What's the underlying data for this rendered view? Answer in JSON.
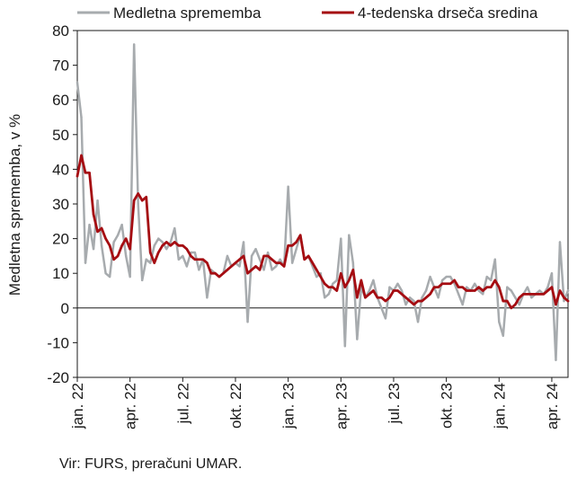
{
  "chart_data": {
    "type": "line",
    "ylabel": "Medletna sprememba, v %",
    "xlabel": "",
    "ylim": [
      -20,
      80
    ],
    "yticks": [
      -20,
      -10,
      0,
      10,
      20,
      30,
      40,
      50,
      60,
      70,
      80
    ],
    "x_tick_labels": [
      "jan. 22",
      "apr. 22",
      "jul. 22",
      "okt. 22",
      "jan. 23",
      "apr. 23",
      "jul. 23",
      "okt. 23",
      "jan. 24",
      "apr. 24"
    ],
    "x_tick_weeks": [
      0,
      13,
      26,
      39,
      52,
      65,
      78,
      91,
      104,
      117
    ],
    "legend_position": "top",
    "grid": false,
    "zero_line": true,
    "source": "Vir: FURS, preračuni UMAR.",
    "series": [
      {
        "name": "Medletna sprememba",
        "color": "#a7abae",
        "values": [
          65,
          55,
          13,
          24,
          17,
          31,
          18,
          10,
          9,
          19,
          21,
          24,
          15,
          9,
          76,
          30,
          8,
          14,
          13,
          18,
          20,
          19,
          17,
          19,
          23,
          14,
          15,
          12,
          16,
          16,
          11,
          14,
          3,
          11,
          10,
          9,
          10,
          15,
          12,
          13,
          12,
          19,
          -4,
          15,
          17,
          14,
          11,
          16,
          11,
          12,
          14,
          12,
          35,
          13,
          17,
          21,
          14,
          15,
          12,
          9,
          10,
          3,
          4,
          7,
          8,
          20,
          -11,
          21,
          13,
          -9,
          6,
          3,
          5,
          8,
          3,
          0,
          -3,
          6,
          5,
          7,
          5,
          1,
          3,
          2,
          -4,
          3,
          5,
          9,
          6,
          3,
          8,
          9,
          9,
          7,
          4,
          1,
          6,
          5,
          7,
          5,
          4,
          9,
          8,
          14,
          -4,
          -8,
          6,
          5,
          3,
          1,
          4,
          6,
          3,
          4,
          5,
          4,
          6,
          10,
          -15,
          19,
          2,
          5
        ]
      },
      {
        "name": "4-tedenska drseča sredina",
        "color": "#a50d12",
        "values": [
          38,
          44,
          39,
          39,
          27,
          22,
          23,
          20,
          18,
          14,
          15,
          18,
          20,
          17,
          31,
          33,
          31,
          32,
          16,
          13,
          16,
          18,
          19,
          18,
          19,
          18,
          18,
          17,
          15,
          14,
          14,
          14,
          13,
          10,
          10,
          9,
          10,
          11,
          12,
          13,
          14,
          15,
          10,
          11,
          12,
          11,
          15,
          15,
          14,
          13,
          13,
          12,
          18,
          18,
          19,
          21,
          14,
          15,
          13,
          11,
          9,
          7,
          6,
          6,
          5,
          10,
          6,
          8,
          11,
          3,
          8,
          3,
          4,
          5,
          3,
          3,
          2,
          3,
          5,
          5,
          4,
          3,
          2,
          1,
          2,
          2,
          3,
          4,
          6,
          6,
          7,
          7,
          7,
          8,
          6,
          6,
          5,
          5,
          5,
          6,
          5,
          6,
          6,
          8,
          6,
          2,
          2,
          0,
          1,
          3,
          4,
          4,
          4,
          4,
          4,
          4,
          5,
          6,
          1,
          5,
          3,
          2
        ]
      }
    ]
  }
}
